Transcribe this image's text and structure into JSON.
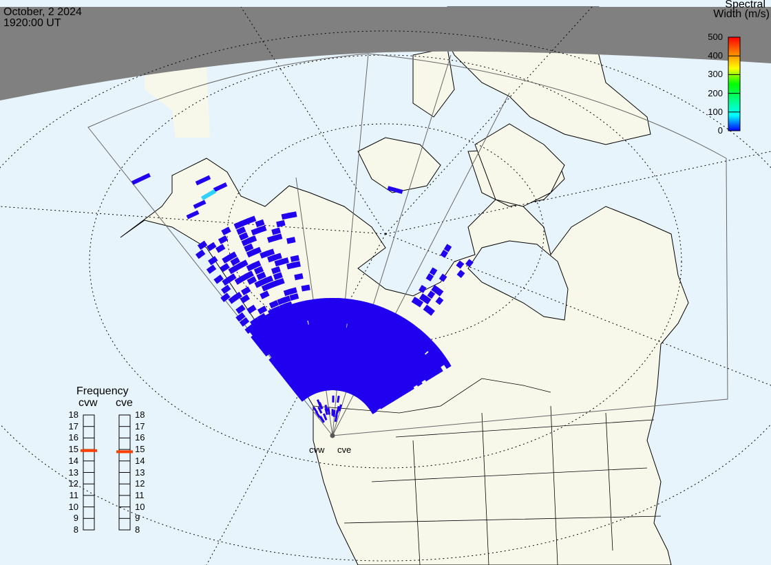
{
  "header": {
    "date": "October, 2 2024",
    "time": "1920:00 UT"
  },
  "colorbar": {
    "title_line1": "Spectral",
    "title_line2": "Width (m/s)",
    "ticks": [
      "500",
      "400",
      "300",
      "200",
      "100",
      "0"
    ],
    "range": [
      0,
      500
    ],
    "colors": [
      "#0000ff",
      "#00ffff",
      "#00ff80",
      "#00ff00",
      "#ffff00",
      "#ff8000",
      "#ff0000"
    ]
  },
  "frequency": {
    "title": "Frequency",
    "radars": [
      {
        "name": "cvw",
        "value_mhz": 14.9
      },
      {
        "name": "cve",
        "value_mhz": 14.8
      }
    ],
    "ticks": [
      "18",
      "17",
      "16",
      "15",
      "14",
      "13",
      "12",
      "11",
      "10",
      "9",
      "8"
    ],
    "range": [
      8,
      18
    ],
    "marker_color": "#ff4000"
  },
  "radar_site": {
    "labels": [
      "cvw",
      "cve"
    ]
  },
  "colors": {
    "ocean": "#e8f4fc",
    "land": "#f8f8ea",
    "night": "#808080",
    "scatter_low": "#2000ee",
    "scatter_mid": "#30d0ff"
  }
}
